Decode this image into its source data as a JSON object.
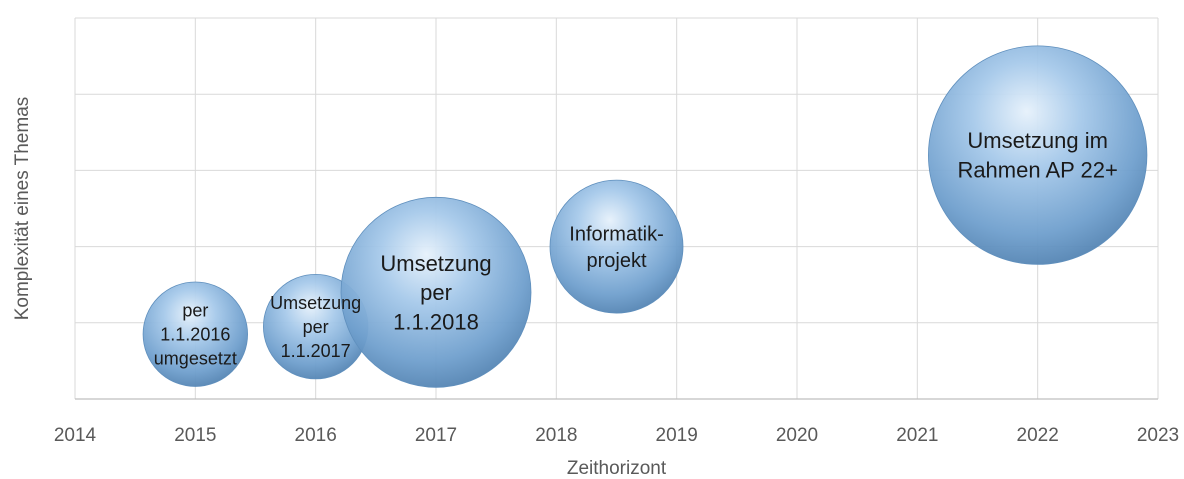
{
  "chart_data": {
    "type": "bubble",
    "xlabel": "Zeithorizont",
    "ylabel": "Komplexität eines Themas",
    "xlim": [
      2014,
      2023
    ],
    "ylim": [
      0,
      5
    ],
    "x_ticks": [
      "2014",
      "2015",
      "2016",
      "2017",
      "2018",
      "2019",
      "2020",
      "2021",
      "2022",
      "2023"
    ],
    "y_ticks_shown": false,
    "grid": true,
    "bubble_color": "#7fb0dc",
    "points": [
      {
        "x": 2015.0,
        "y": 0.85,
        "size": 0.55,
        "label": [
          "per",
          "1.1.2016",
          "umgesetzt"
        ]
      },
      {
        "x": 2016.0,
        "y": 0.95,
        "size": 0.55,
        "label": [
          "Umsetzung",
          "per",
          "1.1.2017"
        ]
      },
      {
        "x": 2017.0,
        "y": 1.4,
        "size": 1.0,
        "label": [
          "Umsetzung",
          "per",
          "1.1.2018"
        ]
      },
      {
        "x": 2018.5,
        "y": 2.0,
        "size": 0.7,
        "label": [
          "Informatik-",
          "projekt"
        ]
      },
      {
        "x": 2022.0,
        "y": 3.2,
        "size": 1.15,
        "label": [
          "Umsetzung im",
          "Rahmen AP 22+"
        ]
      }
    ]
  }
}
